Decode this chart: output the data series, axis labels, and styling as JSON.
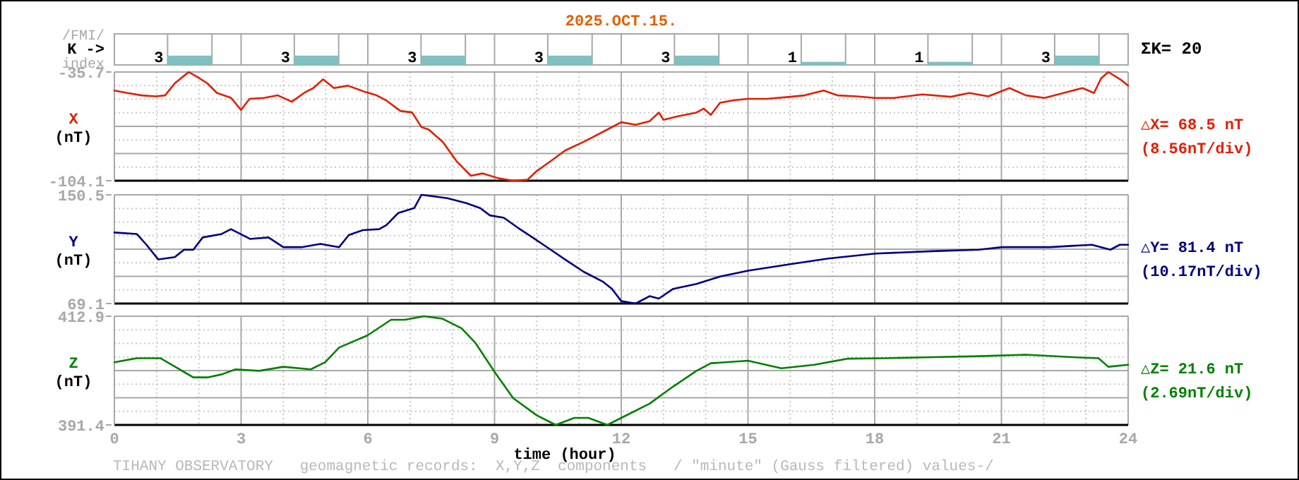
{
  "chart_data": [
    {
      "type": "bar",
      "title": "2025.OCT.15.",
      "ylabel": "K ->",
      "annotations": [
        "/FMI/",
        "index",
        "ΣK= 20"
      ],
      "categories": [
        null,
        null,
        null,
        null,
        null,
        null,
        null,
        null
      ],
      "values": [
        3,
        3,
        3,
        3,
        3,
        1,
        1,
        3
      ],
      "color": "#80c0c0",
      "data_labels": true,
      "tick_labels": false
    },
    {
      "type": "line",
      "ylabel": "(nT)",
      "annotations": [
        "△X= 68.5 nT",
        "(8.56nT/div)"
      ],
      "xlim": [
        0,
        24
      ],
      "xticks": [
        0,
        {
          "value": 1,
          "label": null
        },
        {
          "value": 2,
          "label": null
        },
        3,
        {
          "value": 4,
          "label": null
        },
        {
          "value": 5,
          "label": null
        },
        6,
        {
          "value": 7,
          "label": null
        },
        {
          "value": 8,
          "label": null
        },
        9,
        {
          "value": 10,
          "label": null
        },
        {
          "value": 11,
          "label": null
        },
        12,
        {
          "value": 13,
          "label": null
        },
        {
          "value": 14,
          "label": null
        },
        15,
        {
          "value": 16,
          "label": null
        },
        {
          "value": 17,
          "label": null
        },
        18,
        {
          "value": 19,
          "label": null
        },
        {
          "value": 20,
          "label": null
        },
        21,
        {
          "value": 22,
          "label": null
        },
        {
          "value": 23,
          "label": null
        },
        24
      ],
      "ylim": [
        -104.1,
        -35.7
      ],
      "yticks": [
        -104.1,
        {
          "value": -95.55,
          "label": null
        },
        {
          "value": -87.0,
          "label": null
        },
        {
          "value": -78.45,
          "label": null
        },
        {
          "value": -69.9,
          "label": null
        },
        {
          "value": -61.35,
          "label": null
        },
        {
          "value": -52.8,
          "label": null
        },
        {
          "value": -44.25,
          "label": null
        },
        -35.7
      ],
      "grid": true,
      "tick_labels": "y",
      "series": [
        {
          "name": "X",
          "color": "#e02000",
          "x": [
            0,
            0.31,
            0.65,
            0.98,
            1.2,
            1.43,
            1.76,
            1.98,
            2.2,
            2.43,
            2.76,
            3.0,
            3.2,
            3.54,
            3.87,
            4.2,
            4.49,
            4.71,
            4.94,
            5.2,
            5.53,
            5.94,
            6.21,
            6.43,
            6.77,
            7.05,
            7.27,
            7.44,
            7.77,
            8.1,
            8.44,
            8.72,
            9.1,
            9.44,
            9.78,
            10.0,
            10.33,
            10.67,
            11.11,
            11.34,
            11.67,
            12.0,
            12.34,
            12.67,
            12.89,
            13.0,
            13.34,
            13.78,
            13.95,
            14.12,
            14.34,
            14.67,
            15.0,
            15.45,
            16.0,
            16.34,
            16.79,
            17.12,
            17.57,
            18.01,
            18.46,
            19.13,
            19.8,
            20.24,
            20.69,
            21.19,
            21.58,
            22.02,
            22.47,
            22.92,
            23.19,
            23.36,
            23.53,
            23.81,
            24.0
          ],
          "values": [
            -47.4,
            -48.9,
            -50.4,
            -51.0,
            -50.4,
            -42.8,
            -35.7,
            -39.1,
            -42.8,
            -48.9,
            -51.9,
            -59.6,
            -52.6,
            -52.0,
            -50.4,
            -54.4,
            -48.9,
            -45.8,
            -40.3,
            -45.8,
            -44.3,
            -48.3,
            -50.4,
            -53.5,
            -60.2,
            -61.2,
            -70.4,
            -71.9,
            -79.6,
            -91.8,
            -101.0,
            -99.5,
            -102.6,
            -104.1,
            -103.5,
            -98.0,
            -91.8,
            -85.1,
            -79.6,
            -76.5,
            -71.9,
            -67.3,
            -68.9,
            -66.7,
            -61.2,
            -65.8,
            -63.6,
            -61.2,
            -58.7,
            -62.7,
            -55.0,
            -53.5,
            -52.6,
            -52.6,
            -51.3,
            -50.4,
            -47.4,
            -50.4,
            -51.0,
            -52.0,
            -52.0,
            -49.8,
            -51.3,
            -48.9,
            -51.0,
            -45.8,
            -50.4,
            -52.0,
            -48.9,
            -45.8,
            -48.9,
            -39.7,
            -35.7,
            -40.3,
            -44.3
          ]
        }
      ]
    },
    {
      "type": "line",
      "ylabel": "(nT)",
      "annotations": [
        "△Y= 81.4 nT",
        "(10.17nT/div)"
      ],
      "xlim": [
        0,
        24
      ],
      "xticks": [
        0,
        {
          "value": 1,
          "label": null
        },
        {
          "value": 2,
          "label": null
        },
        3,
        {
          "value": 4,
          "label": null
        },
        {
          "value": 5,
          "label": null
        },
        6,
        {
          "value": 7,
          "label": null
        },
        {
          "value": 8,
          "label": null
        },
        9,
        {
          "value": 10,
          "label": null
        },
        {
          "value": 11,
          "label": null
        },
        12,
        {
          "value": 13,
          "label": null
        },
        {
          "value": 14,
          "label": null
        },
        15,
        {
          "value": 16,
          "label": null
        },
        {
          "value": 17,
          "label": null
        },
        18,
        {
          "value": 19,
          "label": null
        },
        {
          "value": 20,
          "label": null
        },
        21,
        {
          "value": 22,
          "label": null
        },
        {
          "value": 23,
          "label": null
        },
        24
      ],
      "ylim": [
        69.1,
        150.5
      ],
      "yticks": [
        69.1,
        {
          "value": 79.28,
          "label": null
        },
        {
          "value": 89.45,
          "label": null
        },
        {
          "value": 99.63,
          "label": null
        },
        {
          "value": 109.8,
          "label": null
        },
        {
          "value": 119.98,
          "label": null
        },
        {
          "value": 130.15,
          "label": null
        },
        {
          "value": 140.33,
          "label": null
        },
        150.5
      ],
      "grid": true,
      "tick_labels": "y",
      "series": [
        {
          "name": "Y",
          "color": "#000080",
          "x": [
            0,
            0.53,
            0.76,
            1.04,
            1.43,
            1.65,
            1.87,
            2.09,
            2.54,
            2.76,
            3.21,
            3.65,
            4.0,
            4.43,
            4.88,
            5.32,
            5.55,
            5.88,
            6.27,
            6.44,
            6.72,
            7.1,
            7.27,
            7.44,
            7.88,
            8.33,
            8.66,
            8.89,
            9.22,
            9.55,
            9.9,
            10.33,
            10.67,
            11.11,
            11.56,
            11.78,
            12.0,
            12.34,
            12.67,
            12.89,
            13.23,
            13.78,
            14.34,
            15.0,
            16.0,
            16.9,
            18.01,
            19.35,
            20.46,
            21.02,
            22.14,
            23.14,
            23.58,
            23.8,
            24
          ],
          "values": [
            122.3,
            121.2,
            113.1,
            102.1,
            103.9,
            109.4,
            109.4,
            118.6,
            121.2,
            124.8,
            117.5,
            118.6,
            111.3,
            111.3,
            113.8,
            111.3,
            120.4,
            124.1,
            124.8,
            127.8,
            136.9,
            140.6,
            150.5,
            149.8,
            148.0,
            144.3,
            140.6,
            135.1,
            133.3,
            125.9,
            118.6,
            109.4,
            102.1,
            92.9,
            85.6,
            80.1,
            70.9,
            69.1,
            74.6,
            72.8,
            80.1,
            83.8,
            89.3,
            93.7,
            98.6,
            102.8,
            106.5,
            108.3,
            109.4,
            111.3,
            111.3,
            113.1,
            109.4,
            113.1,
            113.1
          ]
        }
      ]
    },
    {
      "type": "line",
      "ylabel": "(nT)",
      "xlabel": "time (hour)",
      "annotations": [
        "△Z= 21.6 nT",
        "(2.69nT/div)",
        "TIHANY OBSERVATORY   geomagnetic records:  X,Y,Z  components   / \"minute\" (Gauss filtered) values-/"
      ],
      "xlim": [
        0,
        24
      ],
      "xticks": [
        0,
        {
          "value": 1,
          "label": null
        },
        {
          "value": 2,
          "label": null
        },
        3,
        {
          "value": 4,
          "label": null
        },
        {
          "value": 5,
          "label": null
        },
        6,
        {
          "value": 7,
          "label": null
        },
        {
          "value": 8,
          "label": null
        },
        9,
        {
          "value": 10,
          "label": null
        },
        {
          "value": 11,
          "label": null
        },
        12,
        {
          "value": 13,
          "label": null
        },
        {
          "value": 14,
          "label": null
        },
        15,
        {
          "value": 16,
          "label": null
        },
        {
          "value": 17,
          "label": null
        },
        18,
        {
          "value": 19,
          "label": null
        },
        {
          "value": 20,
          "label": null
        },
        21,
        {
          "value": 22,
          "label": null
        },
        {
          "value": 23,
          "label": null
        },
        24
      ],
      "ylim": [
        391.4,
        412.9
      ],
      "yticks": [
        391.4,
        {
          "value": 394.09,
          "label": null
        },
        {
          "value": 396.78,
          "label": null
        },
        {
          "value": 399.46,
          "label": null
        },
        {
          "value": 402.15,
          "label": null
        },
        {
          "value": 404.84,
          "label": null
        },
        {
          "value": 407.53,
          "label": null
        },
        {
          "value": 410.21,
          "label": null
        },
        412.9
      ],
      "grid": true,
      "series": [
        {
          "name": "Z",
          "color": "#008000",
          "x": [
            0,
            0.53,
            1.09,
            1.54,
            1.87,
            2.2,
            2.54,
            2.87,
            3.43,
            4.0,
            4.65,
            4.99,
            5.32,
            5.99,
            6.55,
            6.88,
            7.33,
            7.77,
            8.22,
            8.55,
            9.0,
            9.44,
            10.0,
            10.45,
            10.89,
            11.22,
            11.67,
            12.0,
            12.67,
            13.23,
            13.78,
            14.12,
            15.0,
            15.79,
            16.57,
            17.35,
            18.24,
            19.35,
            20.46,
            21.58,
            22.69,
            23.3,
            23.53,
            24
          ],
          "values": [
            403.8,
            404.6,
            404.6,
            402.4,
            400.8,
            400.8,
            401.4,
            402.4,
            402.1,
            402.9,
            402.4,
            403.8,
            406.7,
            409.1,
            412.2,
            412.2,
            412.9,
            412.4,
            410.5,
            407.6,
            401.9,
            396.7,
            393.3,
            391.4,
            392.8,
            392.8,
            391.4,
            392.8,
            395.6,
            399.0,
            402.1,
            403.6,
            404.1,
            402.6,
            403.3,
            404.5,
            404.6,
            404.8,
            405.0,
            405.3,
            404.8,
            404.6,
            402.9,
            403.3
          ]
        }
      ]
    }
  ]
}
